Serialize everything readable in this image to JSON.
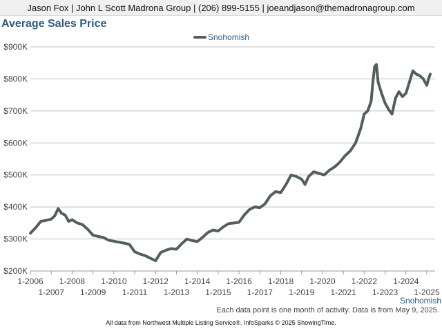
{
  "header": {
    "contact": "Jason Fox | John L Scott Madrona Group | (206) 899-5155 | joeandjason@themadronagroup.com"
  },
  "chart_data": {
    "type": "line",
    "title": "Average Sales Price",
    "xlabel": "",
    "ylabel": "",
    "ylim": [
      200000,
      900000
    ],
    "y_ticks": [
      200000,
      300000,
      400000,
      500000,
      600000,
      700000,
      800000,
      900000
    ],
    "y_tick_labels": [
      "$200K",
      "$300K",
      "$400K",
      "$500K",
      "$600K",
      "$700K",
      "$800K",
      "$900K"
    ],
    "x_range": [
      "2006-01",
      "2025-03"
    ],
    "x_ticks": [
      "2006-01",
      "2007-01",
      "2008-01",
      "2009-01",
      "2010-01",
      "2011-01",
      "2012-01",
      "2013-01",
      "2014-01",
      "2015-01",
      "2016-01",
      "2017-01",
      "2018-01",
      "2019-01",
      "2020-01",
      "2021-01",
      "2022-01",
      "2023-01",
      "2024-01",
      "2025-01"
    ],
    "x_tick_labels": [
      "1-2006",
      "1-2007",
      "1-2008",
      "1-2009",
      "1-2010",
      "1-2011",
      "1-2012",
      "1-2013",
      "1-2014",
      "1-2015",
      "1-2016",
      "1-2017",
      "1-2018",
      "1-2019",
      "1-2020",
      "1-2021",
      "1-2022",
      "1-2023",
      "1-2024",
      "1-2025"
    ],
    "legend_position": "top-center",
    "grid": true,
    "series": [
      {
        "name": "Snohomish",
        "color": "#535f5b",
        "points": [
          [
            "2006-01",
            318000
          ],
          [
            "2006-04",
            335000
          ],
          [
            "2006-07",
            355000
          ],
          [
            "2006-10",
            358000
          ],
          [
            "2007-01",
            362000
          ],
          [
            "2007-03",
            372000
          ],
          [
            "2007-05",
            395000
          ],
          [
            "2007-07",
            380000
          ],
          [
            "2007-09",
            375000
          ],
          [
            "2007-11",
            355000
          ],
          [
            "2008-01",
            360000
          ],
          [
            "2008-04",
            350000
          ],
          [
            "2008-07",
            345000
          ],
          [
            "2008-10",
            330000
          ],
          [
            "2009-01",
            312000
          ],
          [
            "2009-04",
            308000
          ],
          [
            "2009-07",
            305000
          ],
          [
            "2009-10",
            296000
          ],
          [
            "2010-01",
            293000
          ],
          [
            "2010-04",
            290000
          ],
          [
            "2010-07",
            287000
          ],
          [
            "2010-10",
            283000
          ],
          [
            "2011-01",
            260000
          ],
          [
            "2011-04",
            253000
          ],
          [
            "2011-07",
            248000
          ],
          [
            "2011-10",
            240000
          ],
          [
            "2012-01",
            232000
          ],
          [
            "2012-04",
            258000
          ],
          [
            "2012-07",
            265000
          ],
          [
            "2012-10",
            270000
          ],
          [
            "2013-01",
            268000
          ],
          [
            "2013-04",
            285000
          ],
          [
            "2013-07",
            300000
          ],
          [
            "2013-10",
            295000
          ],
          [
            "2014-01",
            292000
          ],
          [
            "2014-04",
            305000
          ],
          [
            "2014-07",
            320000
          ],
          [
            "2014-10",
            328000
          ],
          [
            "2015-01",
            325000
          ],
          [
            "2015-04",
            338000
          ],
          [
            "2015-07",
            348000
          ],
          [
            "2015-10",
            350000
          ],
          [
            "2016-01",
            352000
          ],
          [
            "2016-04",
            375000
          ],
          [
            "2016-07",
            392000
          ],
          [
            "2016-10",
            400000
          ],
          [
            "2017-01",
            398000
          ],
          [
            "2017-04",
            410000
          ],
          [
            "2017-07",
            435000
          ],
          [
            "2017-10",
            448000
          ],
          [
            "2018-01",
            445000
          ],
          [
            "2018-04",
            470000
          ],
          [
            "2018-07",
            500000
          ],
          [
            "2018-10",
            495000
          ],
          [
            "2019-01",
            487000
          ],
          [
            "2019-03",
            470000
          ],
          [
            "2019-05",
            495000
          ],
          [
            "2019-08",
            510000
          ],
          [
            "2019-11",
            505000
          ],
          [
            "2020-02",
            500000
          ],
          [
            "2020-05",
            515000
          ],
          [
            "2020-08",
            525000
          ],
          [
            "2020-11",
            540000
          ],
          [
            "2021-02",
            560000
          ],
          [
            "2021-05",
            575000
          ],
          [
            "2021-08",
            600000
          ],
          [
            "2021-11",
            645000
          ],
          [
            "2022-01",
            690000
          ],
          [
            "2022-03",
            700000
          ],
          [
            "2022-05",
            730000
          ],
          [
            "2022-06",
            790000
          ],
          [
            "2022-07",
            838000
          ],
          [
            "2022-08",
            845000
          ],
          [
            "2022-09",
            790000
          ],
          [
            "2022-11",
            755000
          ],
          [
            "2023-01",
            725000
          ],
          [
            "2023-03",
            705000
          ],
          [
            "2023-05",
            690000
          ],
          [
            "2023-07",
            740000
          ],
          [
            "2023-09",
            760000
          ],
          [
            "2023-11",
            745000
          ],
          [
            "2024-01",
            755000
          ],
          [
            "2024-03",
            790000
          ],
          [
            "2024-05",
            825000
          ],
          [
            "2024-07",
            815000
          ],
          [
            "2024-09",
            810000
          ],
          [
            "2024-11",
            800000
          ],
          [
            "2025-01",
            780000
          ],
          [
            "2025-02",
            800000
          ],
          [
            "2025-03",
            815000
          ]
        ]
      }
    ]
  },
  "footer": {
    "series_tag": "Snohomish",
    "note": "Each data point is one month of activity. Data is from May 9, 2025.",
    "credit": "All data from Northwest Multiple Listing Service®. InfoSparks © 2025 ShowingTime."
  }
}
